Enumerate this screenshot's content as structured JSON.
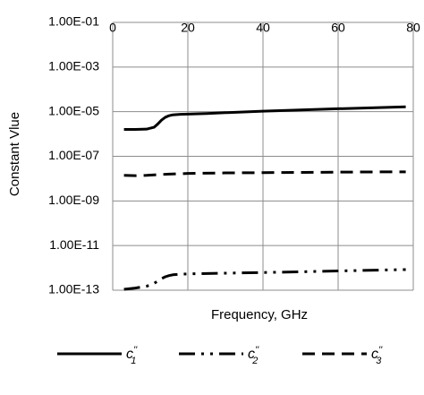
{
  "chart_data": {
    "type": "line",
    "title": "",
    "xlabel": "Frequency, GHz",
    "ylabel": "Constant Vlue",
    "y_scale": "log",
    "xlim": [
      0,
      80
    ],
    "ylim": [
      1e-13,
      0.1
    ],
    "x_ticks": [
      "0",
      "20",
      "40",
      "60",
      "80"
    ],
    "y_ticks": [
      "1.00E-01",
      "1.00E-03",
      "1.00E-05",
      "1.00E-07",
      "1.00E-09",
      "1.00E-11",
      "1.00E-13"
    ],
    "grid": true,
    "legend_position": "bottom",
    "series": [
      {
        "name": "c1''",
        "label_main": "c",
        "label_sub": "1",
        "label_sup": "''",
        "style": "solid",
        "x": [
          3,
          6,
          9,
          11,
          12,
          13,
          14,
          15,
          16,
          18,
          20,
          25,
          30,
          40,
          50,
          60,
          70,
          78
        ],
        "y": [
          1.6e-06,
          1.6e-06,
          1.65e-06,
          2e-06,
          2.8e-06,
          4.2e-06,
          5.6e-06,
          6.6e-06,
          7.2e-06,
          7.6e-06,
          7.8e-06,
          8.2e-06,
          9e-06,
          1.05e-05,
          1.2e-05,
          1.35e-05,
          1.5e-05,
          1.65e-05
        ]
      },
      {
        "name": "c2''",
        "label_main": "c",
        "label_sub": "2",
        "label_sup": "''",
        "style": "dash-dot-dot",
        "x": [
          3,
          6,
          9,
          11,
          12,
          13,
          14,
          15,
          16,
          18,
          20,
          25,
          30,
          40,
          50,
          60,
          70,
          78
        ],
        "y": [
          1.1e-13,
          1.25e-13,
          1.5e-13,
          2e-13,
          2.6e-13,
          3.3e-13,
          4e-13,
          4.5e-13,
          4.9e-13,
          5.2e-13,
          5.4e-13,
          5.6e-13,
          5.8e-13,
          6.2e-13,
          6.7e-13,
          7.3e-13,
          7.9e-13,
          8.4e-13
        ]
      },
      {
        "name": "c3''",
        "label_main": "c",
        "label_sub": "3",
        "label_sup": "''",
        "style": "dashed",
        "x": [
          3,
          6,
          9,
          12,
          15,
          20,
          30,
          40,
          50,
          60,
          70,
          78
        ],
        "y": [
          1.4e-08,
          1.35e-08,
          1.4e-08,
          1.5e-08,
          1.6e-08,
          1.7e-08,
          1.8e-08,
          1.85e-08,
          1.9e-08,
          1.95e-08,
          2e-08,
          2e-08
        ]
      }
    ]
  }
}
